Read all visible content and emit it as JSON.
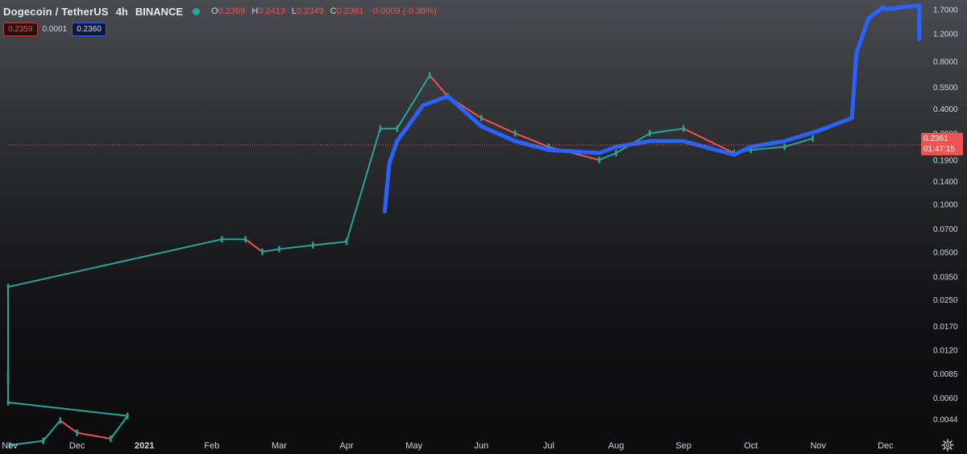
{
  "header": {
    "symbol": "Dogecoin / TetherUS",
    "interval": "4h",
    "exchange": "BINANCE",
    "ohlc": [
      {
        "key": "O",
        "value": "0.2369"
      },
      {
        "key": "H",
        "value": "0.2413"
      },
      {
        "key": "L",
        "value": "0.2349"
      },
      {
        "key": "C",
        "value": "0.2361"
      },
      {
        "key": "",
        "value": "-0.0009 (-0.38%)"
      }
    ]
  },
  "quotes": {
    "bid": "0.2359",
    "spread": "0.0001",
    "ask": "0.2360"
  },
  "price_tag": {
    "price": "0.2361",
    "countdown": "01:47:15"
  },
  "colors": {
    "up": "#26a69a",
    "down": "#ef5350",
    "overlay": "#2962ff",
    "price_line": "#ef5350"
  },
  "icons": {
    "settings": "gear-icon"
  },
  "chart_data": {
    "type": "line",
    "scale": "log",
    "grid": false,
    "ylim": [
      0.0035,
      1.9
    ],
    "y_ticks": [
      "1.7000",
      "1.2000",
      "0.8000",
      "0.5500",
      "0.4000",
      "0.2800",
      "0.1900",
      "0.1400",
      "0.1000",
      "0.0700",
      "0.0500",
      "0.0350",
      "0.0250",
      "0.0170",
      "0.0120",
      "0.0085",
      "0.0060",
      "0.0044"
    ],
    "x_ticks": [
      "Nov",
      "Dec",
      "2021",
      "Feb",
      "Mar",
      "Apr",
      "May",
      "Jun",
      "Jul",
      "Aug",
      "Sep",
      "Oct",
      "Nov",
      "Dec"
    ],
    "series": [
      {
        "role": "candles",
        "points": [
          [
            "Nov",
            0.003
          ],
          [
            "mid Nov",
            0.0032
          ],
          [
            "late Nov",
            0.0043
          ],
          [
            "Dec",
            0.0036
          ],
          [
            "mid Dec",
            0.0033
          ],
          [
            "late Dec",
            0.0046
          ],
          [
            "early Jan",
            0.0056
          ],
          [
            "mid Jan",
            0.0085
          ],
          [
            "late Jan",
            0.008
          ],
          [
            "end Jan",
            0.0076
          ],
          [
            "Jan 29",
            0.03
          ],
          [
            "early Feb",
            0.06
          ],
          [
            "mid Feb",
            0.06
          ],
          [
            "late Feb",
            0.05
          ],
          [
            "Mar",
            0.052
          ],
          [
            "mid Mar",
            0.055
          ],
          [
            "Apr",
            0.058
          ],
          [
            "mid Apr",
            0.3
          ],
          [
            "late Apr",
            0.3
          ],
          [
            "May 8",
            0.65
          ],
          [
            "mid May",
            0.48
          ],
          [
            "Jun",
            0.35
          ],
          [
            "mid Jun",
            0.28
          ],
          [
            "Jul",
            0.23
          ],
          [
            "late Jul",
            0.19
          ],
          [
            "Aug",
            0.21
          ],
          [
            "mid Aug",
            0.28
          ],
          [
            "Sep",
            0.3
          ],
          [
            "late Sep",
            0.21
          ],
          [
            "Oct",
            0.22
          ],
          [
            "mid Oct",
            0.23
          ],
          [
            "end Oct",
            0.26
          ]
        ]
      },
      {
        "role": "overlay",
        "points": [
          [
            "Apr 18",
            0.09
          ],
          [
            "Apr 20",
            0.18
          ],
          [
            "late Apr",
            0.25
          ],
          [
            "May 5",
            0.42
          ],
          [
            "mid May",
            0.48
          ],
          [
            "Jun",
            0.31
          ],
          [
            "mid Jun",
            0.25
          ],
          [
            "Jul",
            0.22
          ],
          [
            "late Jul",
            0.21
          ],
          [
            "Aug",
            0.23
          ],
          [
            "mid Aug",
            0.25
          ],
          [
            "Sep",
            0.25
          ],
          [
            "late Sep",
            0.205
          ],
          [
            "Oct",
            0.23
          ],
          [
            "mid Oct",
            0.25
          ],
          [
            "Nov",
            0.29
          ],
          [
            "mid Nov",
            0.35
          ],
          [
            "Nov 18",
            0.9
          ],
          [
            "late Nov",
            1.5
          ],
          [
            "Nov 30",
            1.75
          ],
          [
            "Dec",
            1.7
          ],
          [
            "mid Dec",
            1.8
          ],
          [
            "Dec 16",
            1.1
          ]
        ]
      }
    ],
    "last_price": 0.2361
  }
}
